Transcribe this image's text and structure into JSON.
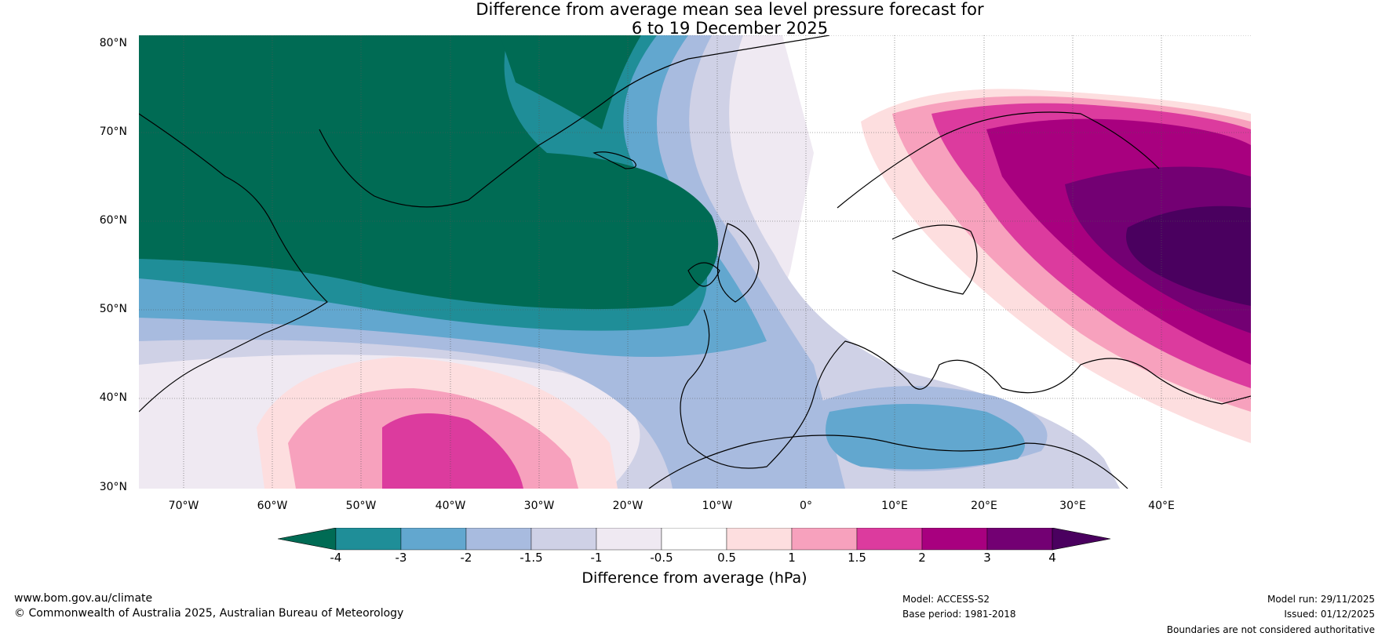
{
  "title": {
    "line1": "Difference from average mean sea level pressure forecast for",
    "line2": "6 to 19 December 2025"
  },
  "axes": {
    "latitude_labels": [
      "80°N",
      "70°N",
      "60°N",
      "50°N",
      "40°N",
      "30°N"
    ],
    "longitude_labels": [
      "70°W",
      "60°W",
      "50°W",
      "40°W",
      "30°W",
      "20°W",
      "10°W",
      "0°",
      "10°E",
      "20°E",
      "30°E",
      "40°E"
    ]
  },
  "map_data": {
    "region": "North Atlantic and Europe",
    "lat_range": [
      30,
      80
    ],
    "lon_range": [
      -75,
      50
    ],
    "anomaly_features": [
      {
        "name": "Negative anomaly Greenland/North Atlantic",
        "value_hPa": "< -4"
      },
      {
        "name": "Positive anomaly Scandinavia/Western Russia",
        "value_hPa": "> 4"
      },
      {
        "name": "Positive anomaly subtropical Atlantic",
        "value_hPa": "1.5 to 2"
      },
      {
        "name": "Negative anomaly Mediterranean",
        "value_hPa": "-2 to -3"
      }
    ]
  },
  "colorbar": {
    "ticks": [
      "-4",
      "-3",
      "-2",
      "-1.5",
      "-1",
      "-0.5",
      "0.5",
      "1",
      "1.5",
      "2",
      "3",
      "4"
    ],
    "colors": [
      "#006b54",
      "#1f8e98",
      "#62a7cf",
      "#a8bbdf",
      "#cfd1e6",
      "#efe9f2",
      "#ffffff",
      "#fddedf",
      "#f7a1bd",
      "#dc3b9e",
      "#a8007f",
      "#730073",
      "#4a005f"
    ],
    "label": "Difference from average (hPa)"
  },
  "footer": {
    "website": "www.bom.gov.au/climate",
    "copyright": "© Commonwealth of Australia 2025, Australian Bureau of Meteorology",
    "model": "Model: ACCESS-S2",
    "base_period": "Base period: 1981-2018",
    "model_run": "Model run: 29/11/2025",
    "issued": "Issued: 01/12/2025",
    "disclaimer": "Boundaries are not considered authoritative"
  }
}
